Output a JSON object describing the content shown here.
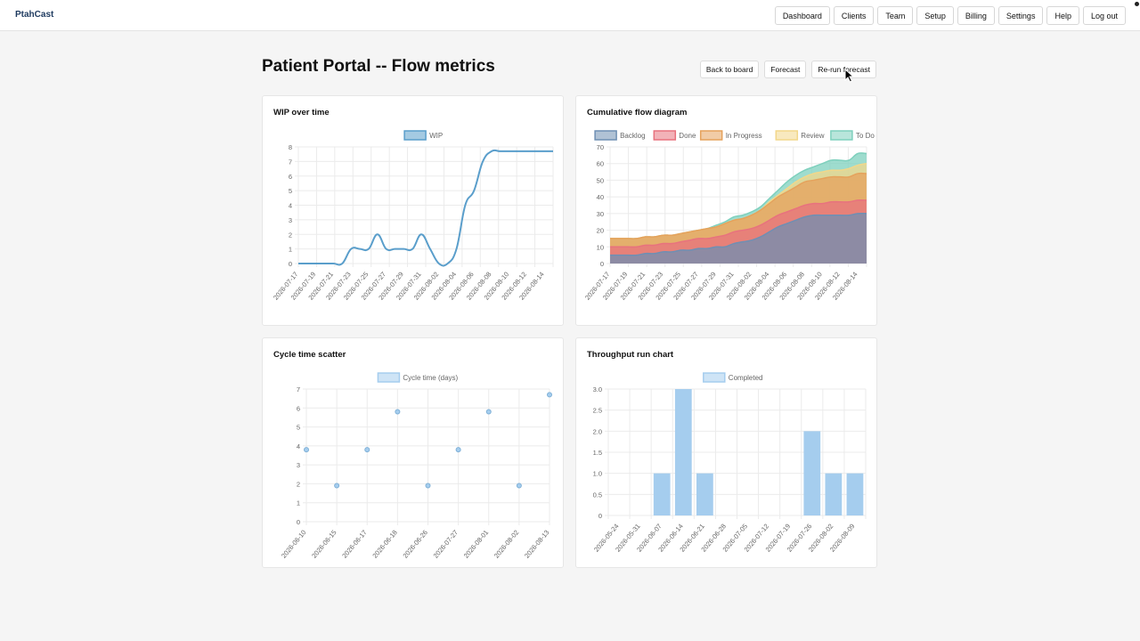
{
  "brand": "PtahCast",
  "nav": [
    "Dashboard",
    "Clients",
    "Team",
    "Setup",
    "Billing",
    "Settings",
    "Help",
    "Log out"
  ],
  "page_title": "Patient Portal -- Flow metrics",
  "actions": [
    "Back to board",
    "Forecast",
    "Re-run forecast"
  ],
  "colors": {
    "wip": "#5a9ecb",
    "backlog": "#6f8fb3",
    "done": "#e8727e",
    "in_progress": "#e5a25c",
    "review": "#f2d78a",
    "todo": "#7ed0bd",
    "bar": "#a5cdee"
  },
  "chart_data": [
    {
      "title": "WIP over time",
      "type": "line",
      "legend": [
        "WIP"
      ],
      "x": [
        "2026-07-17",
        "2026-07-18",
        "2026-07-19",
        "2026-07-20",
        "2026-07-21",
        "2026-07-22",
        "2026-07-23",
        "2026-07-24",
        "2026-07-25",
        "2026-07-26",
        "2026-07-27",
        "2026-07-28",
        "2026-07-29",
        "2026-07-30",
        "2026-07-31",
        "2026-08-01",
        "2026-08-02",
        "2026-08-03",
        "2026-08-04",
        "2026-08-05",
        "2026-08-06",
        "2026-08-07",
        "2026-08-08",
        "2026-08-09",
        "2026-08-10",
        "2026-08-11",
        "2026-08-12",
        "2026-08-13",
        "2026-08-14",
        "2026-08-15"
      ],
      "x_tick_labels": [
        "2026-07-17",
        "2026-07-19",
        "2026-07-21",
        "2026-07-23",
        "2026-07-25",
        "2026-07-27",
        "2026-07-29",
        "2026-07-31",
        "2026-08-02",
        "2026-08-04",
        "2026-08-06",
        "2026-08-08",
        "2026-08-10",
        "2026-08-12",
        "2026-08-14"
      ],
      "values": [
        0,
        0,
        0,
        0,
        0,
        0,
        1,
        1,
        1,
        2,
        1,
        1,
        1,
        1,
        2,
        1,
        0,
        0,
        1,
        4,
        5,
        7,
        7.7,
        7.7,
        7.7,
        7.7,
        7.7,
        7.7,
        7.7,
        7.7
      ],
      "ylim": [
        0,
        8
      ],
      "y_ticks": [
        0,
        1,
        2,
        3,
        4,
        5,
        6,
        7,
        8
      ]
    },
    {
      "title": "Cumulative flow diagram",
      "type": "area",
      "legend": [
        "Backlog",
        "Done",
        "In Progress",
        "Review",
        "To Do"
      ],
      "x": [
        "2026-07-17",
        "2026-07-18",
        "2026-07-19",
        "2026-07-20",
        "2026-07-21",
        "2026-07-22",
        "2026-07-23",
        "2026-07-24",
        "2026-07-25",
        "2026-07-26",
        "2026-07-27",
        "2026-07-28",
        "2026-07-29",
        "2026-07-30",
        "2026-07-31",
        "2026-08-01",
        "2026-08-02",
        "2026-08-03",
        "2026-08-04",
        "2026-08-05",
        "2026-08-06",
        "2026-08-07",
        "2026-08-08",
        "2026-08-09",
        "2026-08-10",
        "2026-08-11",
        "2026-08-12",
        "2026-08-13",
        "2026-08-14",
        "2026-08-15"
      ],
      "x_tick_labels": [
        "2026-07-17",
        "2026-07-19",
        "2026-07-21",
        "2026-07-23",
        "2026-07-25",
        "2026-07-27",
        "2026-07-29",
        "2026-07-31",
        "2026-08-02",
        "2026-08-04",
        "2026-08-06",
        "2026-08-08",
        "2026-08-10",
        "2026-08-12",
        "2026-08-14"
      ],
      "series": [
        {
          "name": "Backlog",
          "values": [
            5,
            5,
            5,
            5,
            6,
            6,
            7,
            7,
            8,
            8,
            9,
            9,
            10,
            10,
            12,
            13,
            14,
            16,
            19,
            22,
            24,
            26,
            28,
            29,
            29,
            29,
            29,
            29,
            30,
            30
          ]
        },
        {
          "name": "Done",
          "values": [
            10,
            10,
            10,
            10,
            11,
            11,
            12,
            12,
            13,
            14,
            15,
            15,
            16,
            17,
            19,
            20,
            21,
            23,
            26,
            29,
            31,
            33,
            35,
            36,
            36,
            37,
            37,
            37,
            38,
            38
          ]
        },
        {
          "name": "In Progress",
          "values": [
            15,
            15,
            15,
            15,
            16,
            16,
            17,
            17,
            18,
            19,
            20,
            21,
            22,
            24,
            26,
            27,
            29,
            32,
            36,
            40,
            43,
            46,
            49,
            50,
            51,
            52,
            52,
            52,
            54,
            54
          ]
        },
        {
          "name": "Review",
          "values": [
            15,
            15,
            15,
            15,
            16,
            16,
            17,
            17,
            18,
            19,
            20,
            21,
            22,
            24,
            26,
            27,
            29,
            32,
            37,
            41,
            45,
            49,
            52,
            54,
            55,
            56,
            56,
            57,
            59,
            60
          ]
        },
        {
          "name": "To Do",
          "values": [
            15,
            15,
            15,
            15,
            16,
            16,
            17,
            17,
            18,
            19,
            20,
            21,
            23,
            25,
            28,
            29,
            31,
            34,
            39,
            44,
            49,
            53,
            56,
            58,
            60,
            62,
            62,
            62,
            66,
            66
          ]
        }
      ],
      "ylim": [
        0,
        70
      ],
      "y_ticks": [
        0,
        10,
        20,
        30,
        40,
        50,
        60,
        70
      ]
    },
    {
      "title": "Cycle time scatter",
      "type": "scatter",
      "legend": [
        "Cycle time (days)"
      ],
      "x": [
        "2026-06-10",
        "2026-06-15",
        "2026-06-17",
        "2026-06-18",
        "2026-06-26",
        "2026-07-27",
        "2026-08-01",
        "2026-08-02",
        "2026-08-13"
      ],
      "values": [
        3.8,
        1.9,
        3.8,
        5.8,
        1.9,
        3.8,
        5.8,
        1.9,
        6.7
      ],
      "ylim": [
        0,
        7
      ],
      "y_ticks": [
        0,
        1,
        2,
        3,
        4,
        5,
        6,
        7
      ]
    },
    {
      "title": "Throughput run chart",
      "type": "bar",
      "legend": [
        "Completed"
      ],
      "categories": [
        "2026-05-24",
        "2026-05-31",
        "2026-06-07",
        "2026-06-14",
        "2026-06-21",
        "2026-06-28",
        "2026-07-05",
        "2026-07-12",
        "2026-07-19",
        "2026-07-26",
        "2026-08-02",
        "2026-08-09"
      ],
      "values": [
        0,
        0,
        1,
        3,
        1,
        0,
        0,
        0,
        0,
        2,
        1,
        1
      ],
      "ylim": [
        0,
        3
      ],
      "y_ticks": [
        "0",
        "0.5",
        "1.0",
        "1.5",
        "2.0",
        "2.5",
        "3.0"
      ]
    }
  ]
}
